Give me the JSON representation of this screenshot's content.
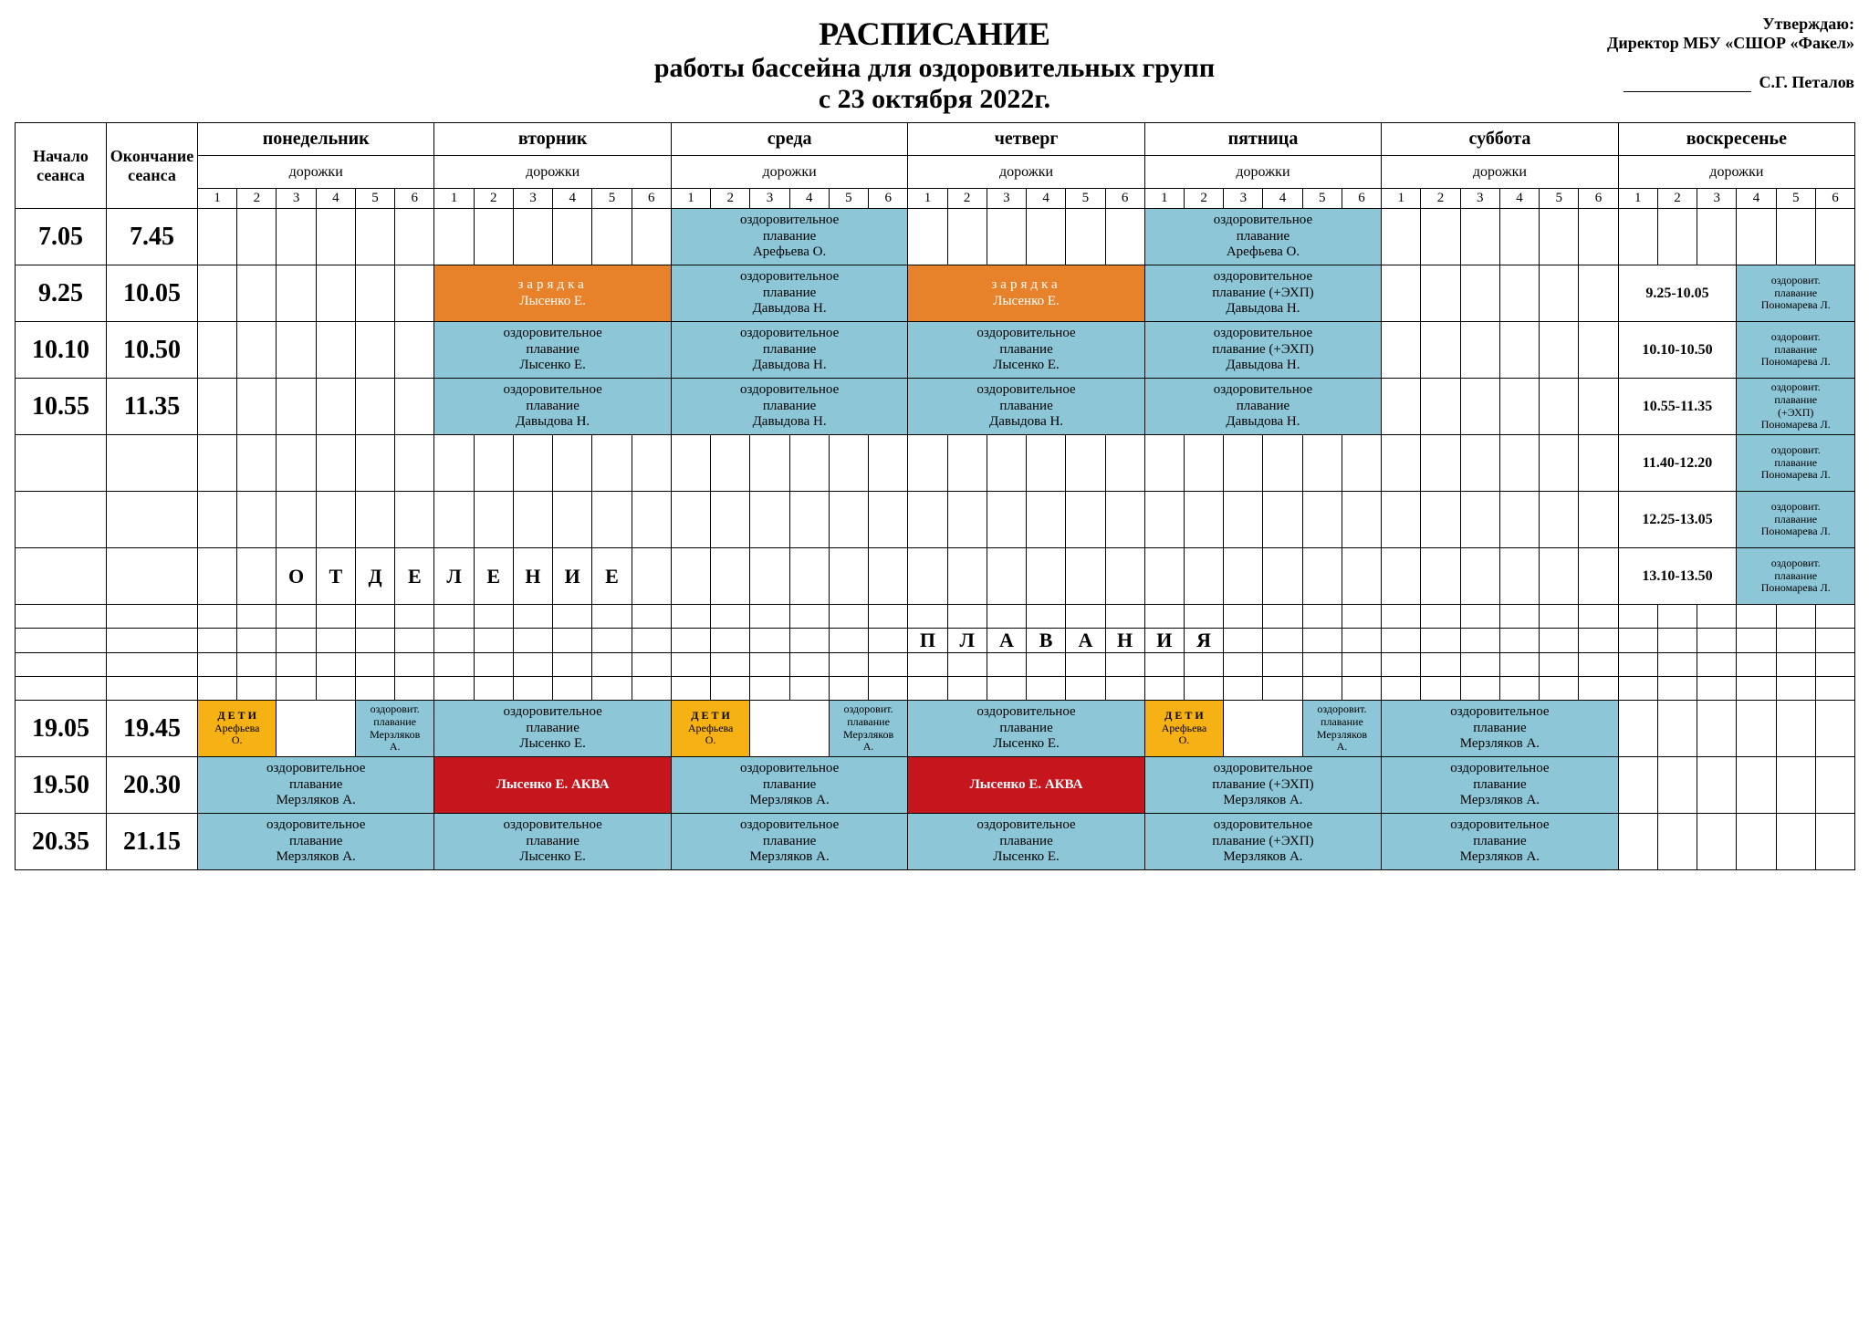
{
  "colors": {
    "blue": "#8cc6d7",
    "orange": "#e8822a",
    "yellow": "#f6b114",
    "red": "#c5161d",
    "border": "#000000",
    "bg": "#ffffff"
  },
  "approve": {
    "line1": "Утверждаю:",
    "line2": "Директор МБУ «СШОР «Факел»",
    "name": "С.Г. Петалов"
  },
  "title": {
    "l1": "РАСПИСАНИЕ",
    "l2": "работы бассейна для оздоровительных групп",
    "l3": "с 23 октября 2022г."
  },
  "hdr": {
    "start": "Начало сеанса",
    "end": "Окончание сеанса",
    "lanes": "дорожки"
  },
  "days": [
    "понедельник",
    "вторник",
    "среда",
    "четверг",
    "пятница",
    "суббота",
    "воскресенье"
  ],
  "laneNums": [
    "1",
    "2",
    "3",
    "4",
    "5",
    "6"
  ],
  "rows": [
    {
      "start": "7.05",
      "end": "7.45",
      "cells": [
        null,
        null,
        {
          "span": 6,
          "cls": "blue mid",
          "txt": "оздоровительное<br>плавание<br>Арефьева О."
        },
        null,
        {
          "span": 6,
          "cls": "blue mid",
          "txt": "оздоровительное<br>плавание<br>Арефьева О."
        },
        null,
        null
      ]
    },
    {
      "start": "9.25",
      "end": "10.05",
      "cells": [
        null,
        {
          "span": 6,
          "cls": "orange mid",
          "txt": "<span class='orangeLS'>зарядка</span><br>Лысенко Е."
        },
        {
          "span": 6,
          "cls": "blue mid",
          "txt": "оздоровительное<br>плавание<br>Давыдова Н."
        },
        {
          "span": 6,
          "cls": "orange mid",
          "txt": "<span class='orangeLS'>зарядка</span><br>Лысенко Е."
        },
        {
          "span": 6,
          "cls": "blue mid",
          "txt": "оздоровительное<br>плавание (+ЭХП)<br>Давыдова Н."
        },
        null,
        {
          "split": [
            {
              "span": 3,
              "cls": "suntime",
              "txt": "9.25-10.05"
            },
            {
              "span": 3,
              "cls": "blue small",
              "txt": "оздоровит.<br>плавание<br>Пономарева Л."
            }
          ]
        }
      ]
    },
    {
      "start": "10.10",
      "end": "10.50",
      "cells": [
        null,
        {
          "span": 6,
          "cls": "blue mid",
          "txt": "оздоровительное<br>плавание<br>Лысенко Е."
        },
        {
          "span": 6,
          "cls": "blue mid",
          "txt": "оздоровительное<br>плавание<br>Давыдова Н."
        },
        {
          "span": 6,
          "cls": "blue mid",
          "txt": "оздоровительное<br>плавание<br>Лысенко Е."
        },
        {
          "span": 6,
          "cls": "blue mid",
          "txt": "оздоровительное<br>плавание (+ЭХП)<br>Давыдова Н."
        },
        null,
        {
          "split": [
            {
              "span": 3,
              "cls": "suntime",
              "txt": "10.10-10.50"
            },
            {
              "span": 3,
              "cls": "blue small",
              "txt": "оздоровит.<br>плавание<br>Пономарева Л."
            }
          ]
        }
      ]
    },
    {
      "start": "10.55",
      "end": "11.35",
      "cells": [
        null,
        {
          "span": 6,
          "cls": "blue mid",
          "txt": "оздоровительное<br>плавание<br>Давыдова Н."
        },
        {
          "span": 6,
          "cls": "blue mid",
          "txt": "оздоровительное<br>плавание<br>Давыдова Н."
        },
        {
          "span": 6,
          "cls": "blue mid",
          "txt": "оздоровительное<br>плавание<br>Давыдова Н."
        },
        {
          "span": 6,
          "cls": "blue mid",
          "txt": "оздоровительное<br>плавание<br>Давыдова Н."
        },
        null,
        {
          "split": [
            {
              "span": 3,
              "cls": "suntime",
              "txt": "10.55-11.35"
            },
            {
              "span": 3,
              "cls": "blue small",
              "txt": "оздоровит.<br>плавание<br>(+ЭХП)<br>Пономарева Л."
            }
          ]
        }
      ]
    },
    {
      "start": "",
      "end": "",
      "cells": [
        null,
        null,
        null,
        null,
        null,
        null,
        {
          "split": [
            {
              "span": 3,
              "cls": "suntime",
              "txt": "11.40-12.20"
            },
            {
              "span": 3,
              "cls": "blue small",
              "txt": "оздоровит.<br>плавание<br>Пономарева Л."
            }
          ]
        }
      ]
    },
    {
      "start": "",
      "end": "",
      "cells": [
        null,
        null,
        null,
        null,
        null,
        null,
        {
          "split": [
            {
              "span": 3,
              "cls": "suntime",
              "txt": "12.25-13.05"
            },
            {
              "span": 3,
              "cls": "blue small",
              "txt": "оздоровит.<br>плавание<br>Пономарева Л."
            }
          ]
        }
      ]
    },
    {
      "start": "",
      "end": "",
      "section": "ОТДЕЛЕНИЕ",
      "sectionStartDay": 0,
      "cells": [
        null,
        null,
        null,
        null,
        null,
        null,
        {
          "split": [
            {
              "span": 3,
              "cls": "suntime",
              "txt": "13.10-13.50"
            },
            {
              "span": 3,
              "cls": "blue small",
              "txt": "оздоровит.<br>плавание<br>Пономарева Л."
            }
          ]
        }
      ]
    },
    {
      "start": "",
      "end": "",
      "low": true,
      "cells": [
        null,
        null,
        null,
        null,
        null,
        null,
        null
      ]
    },
    {
      "start": "",
      "end": "",
      "low": true,
      "section": "ПЛАВАНИЯ",
      "sectionStartDay": 3,
      "cells": [
        null,
        null,
        null,
        null,
        null,
        null,
        null
      ]
    },
    {
      "start": "",
      "end": "",
      "low": true,
      "cells": [
        null,
        null,
        null,
        null,
        null,
        null,
        null
      ]
    },
    {
      "start": "",
      "end": "",
      "low": true,
      "cells": [
        null,
        null,
        null,
        null,
        null,
        null,
        null
      ]
    },
    {
      "start": "19.05",
      "end": "19.45",
      "cells": [
        {
          "split": [
            {
              "span": 2,
              "cls": "yellow small",
              "txt": "<b>Д Е Т И</b><br>Арефьева<br>О."
            },
            {
              "span": 2,
              "cls": ""
            },
            {
              "span": 2,
              "cls": "blue small",
              "txt": "оздоровит.<br>плавание<br>Мерзляков<br>А."
            }
          ]
        },
        {
          "span": 6,
          "cls": "blue mid",
          "txt": "оздоровительное<br>плавание<br>Лысенко Е."
        },
        {
          "split": [
            {
              "span": 2,
              "cls": "yellow small",
              "txt": "<b>Д Е Т И</b><br>Арефьева<br>О."
            },
            {
              "span": 2,
              "cls": ""
            },
            {
              "span": 2,
              "cls": "blue small",
              "txt": "оздоровит.<br>плавание<br>Мерзляков<br>А."
            }
          ]
        },
        {
          "span": 6,
          "cls": "blue mid",
          "txt": "оздоровительное<br>плавание<br>Лысенко Е."
        },
        {
          "split": [
            {
              "span": 2,
              "cls": "yellow small",
              "txt": "<b>Д Е Т И</b><br>Арефьева<br>О."
            },
            {
              "span": 2,
              "cls": ""
            },
            {
              "span": 2,
              "cls": "blue small",
              "txt": "оздоровит.<br>плавание<br>Мерзляков<br>А."
            }
          ]
        },
        {
          "span": 6,
          "cls": "blue mid",
          "txt": "оздоровительное<br>плавание<br>Мерзляков А."
        },
        null
      ]
    },
    {
      "start": "19.50",
      "end": "20.30",
      "cells": [
        {
          "span": 6,
          "cls": "blue mid",
          "txt": "оздоровительное<br>плавание<br>Мерзляков А."
        },
        {
          "span": 6,
          "cls": "red mid",
          "txt": "Лысенко Е. АКВА"
        },
        {
          "span": 6,
          "cls": "blue mid",
          "txt": "оздоровительное<br>плавание<br>Мерзляков А."
        },
        {
          "span": 6,
          "cls": "red mid",
          "txt": "Лысенко Е. АКВА"
        },
        {
          "span": 6,
          "cls": "blue mid",
          "txt": "оздоровительное<br>плавание (+ЭХП)<br>Мерзляков А."
        },
        {
          "span": 6,
          "cls": "blue mid",
          "txt": "оздоровительное<br>плавание<br>Мерзляков А."
        },
        null
      ]
    },
    {
      "start": "20.35",
      "end": "21.15",
      "cells": [
        {
          "span": 6,
          "cls": "blue mid",
          "txt": "оздоровительное<br>плавание<br>Мерзляков А."
        },
        {
          "span": 6,
          "cls": "blue mid",
          "txt": "оздоровительное<br>плавание<br>Лысенко Е."
        },
        {
          "span": 6,
          "cls": "blue mid",
          "txt": "оздоровительное<br>плавание<br>Мерзляков А."
        },
        {
          "span": 6,
          "cls": "blue mid",
          "txt": "оздоровительное<br>плавание<br>Лысенко Е."
        },
        {
          "span": 6,
          "cls": "blue mid",
          "txt": "оздоровительное<br>плавание (+ЭХП)<br>Мерзляков А."
        },
        {
          "span": 6,
          "cls": "blue mid",
          "txt": "оздоровительное<br>плавание<br>Мерзляков А."
        },
        null
      ]
    }
  ]
}
